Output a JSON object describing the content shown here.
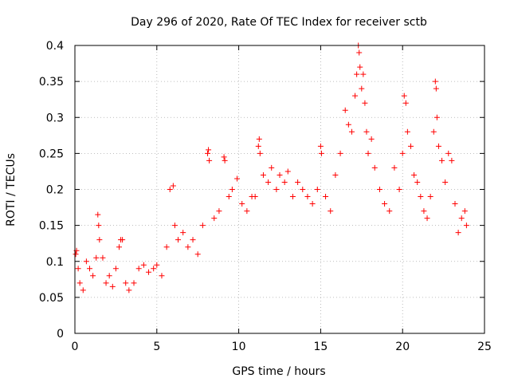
{
  "chart_data": {
    "type": "scatter",
    "title": "Day 296 of 2020, Rate Of TEC Index for receiver sctb",
    "xlabel": "GPS time / hours",
    "ylabel": "ROTI / TECUs",
    "xlim": [
      0,
      25
    ],
    "ylim": [
      0,
      0.4
    ],
    "xticks": [
      0,
      5,
      10,
      15,
      20,
      25
    ],
    "yticks": [
      0,
      0.05,
      0.1,
      0.15,
      0.2,
      0.25,
      0.3,
      0.35,
      0.4
    ],
    "grid": true,
    "marker": "+",
    "color": "#ff0000",
    "series": [
      {
        "points": [
          [
            0.05,
            0.11
          ],
          [
            0.1,
            0.115
          ],
          [
            0.2,
            0.09
          ],
          [
            0.3,
            0.07
          ],
          [
            0.5,
            0.06
          ],
          [
            0.7,
            0.1
          ],
          [
            0.9,
            0.09
          ],
          [
            1.1,
            0.08
          ],
          [
            1.3,
            0.105
          ],
          [
            1.4,
            0.165
          ],
          [
            1.45,
            0.15
          ],
          [
            1.5,
            0.13
          ],
          [
            1.7,
            0.105
          ],
          [
            1.9,
            0.07
          ],
          [
            2.1,
            0.08
          ],
          [
            2.3,
            0.065
          ],
          [
            2.5,
            0.09
          ],
          [
            2.7,
            0.12
          ],
          [
            2.8,
            0.13
          ],
          [
            2.9,
            0.13
          ],
          [
            3.1,
            0.07
          ],
          [
            3.3,
            0.06
          ],
          [
            3.6,
            0.07
          ],
          [
            3.9,
            0.09
          ],
          [
            4.2,
            0.095
          ],
          [
            4.5,
            0.085
          ],
          [
            4.8,
            0.09
          ],
          [
            5.0,
            0.095
          ],
          [
            5.3,
            0.08
          ],
          [
            5.6,
            0.12
          ],
          [
            5.8,
            0.2
          ],
          [
            6.0,
            0.205
          ],
          [
            6.1,
            0.15
          ],
          [
            6.3,
            0.13
          ],
          [
            6.6,
            0.14
          ],
          [
            6.9,
            0.12
          ],
          [
            7.2,
            0.13
          ],
          [
            7.5,
            0.11
          ],
          [
            7.8,
            0.15
          ],
          [
            8.1,
            0.25
          ],
          [
            8.15,
            0.255
          ],
          [
            8.2,
            0.24
          ],
          [
            8.5,
            0.16
          ],
          [
            8.8,
            0.17
          ],
          [
            9.1,
            0.245
          ],
          [
            9.15,
            0.24
          ],
          [
            9.4,
            0.19
          ],
          [
            9.6,
            0.2
          ],
          [
            9.9,
            0.215
          ],
          [
            10.2,
            0.18
          ],
          [
            10.5,
            0.17
          ],
          [
            10.8,
            0.19
          ],
          [
            11.0,
            0.19
          ],
          [
            11.2,
            0.26
          ],
          [
            11.25,
            0.27
          ],
          [
            11.3,
            0.25
          ],
          [
            11.5,
            0.22
          ],
          [
            11.8,
            0.21
          ],
          [
            12.0,
            0.23
          ],
          [
            12.3,
            0.2
          ],
          [
            12.5,
            0.22
          ],
          [
            12.8,
            0.21
          ],
          [
            13.0,
            0.225
          ],
          [
            13.3,
            0.19
          ],
          [
            13.6,
            0.21
          ],
          [
            13.9,
            0.2
          ],
          [
            14.2,
            0.19
          ],
          [
            14.5,
            0.18
          ],
          [
            14.8,
            0.2
          ],
          [
            15.0,
            0.26
          ],
          [
            15.05,
            0.25
          ],
          [
            15.3,
            0.19
          ],
          [
            15.6,
            0.17
          ],
          [
            15.9,
            0.22
          ],
          [
            16.2,
            0.25
          ],
          [
            16.5,
            0.31
          ],
          [
            16.7,
            0.29
          ],
          [
            16.9,
            0.28
          ],
          [
            17.1,
            0.33
          ],
          [
            17.2,
            0.36
          ],
          [
            17.3,
            0.4
          ],
          [
            17.35,
            0.39
          ],
          [
            17.4,
            0.37
          ],
          [
            17.5,
            0.34
          ],
          [
            17.6,
            0.36
          ],
          [
            17.7,
            0.32
          ],
          [
            17.8,
            0.28
          ],
          [
            17.9,
            0.25
          ],
          [
            18.1,
            0.27
          ],
          [
            18.3,
            0.23
          ],
          [
            18.6,
            0.2
          ],
          [
            18.9,
            0.18
          ],
          [
            19.2,
            0.17
          ],
          [
            19.5,
            0.23
          ],
          [
            19.8,
            0.2
          ],
          [
            20.0,
            0.25
          ],
          [
            20.1,
            0.33
          ],
          [
            20.2,
            0.32
          ],
          [
            20.3,
            0.28
          ],
          [
            20.5,
            0.26
          ],
          [
            20.7,
            0.22
          ],
          [
            20.9,
            0.21
          ],
          [
            21.1,
            0.19
          ],
          [
            21.3,
            0.17
          ],
          [
            21.5,
            0.16
          ],
          [
            21.7,
            0.19
          ],
          [
            21.9,
            0.28
          ],
          [
            22.0,
            0.35
          ],
          [
            22.05,
            0.34
          ],
          [
            22.1,
            0.3
          ],
          [
            22.2,
            0.26
          ],
          [
            22.4,
            0.24
          ],
          [
            22.6,
            0.21
          ],
          [
            22.8,
            0.25
          ],
          [
            23.0,
            0.24
          ],
          [
            23.2,
            0.18
          ],
          [
            23.4,
            0.14
          ],
          [
            23.6,
            0.16
          ],
          [
            23.8,
            0.17
          ],
          [
            23.9,
            0.15
          ]
        ]
      }
    ]
  }
}
